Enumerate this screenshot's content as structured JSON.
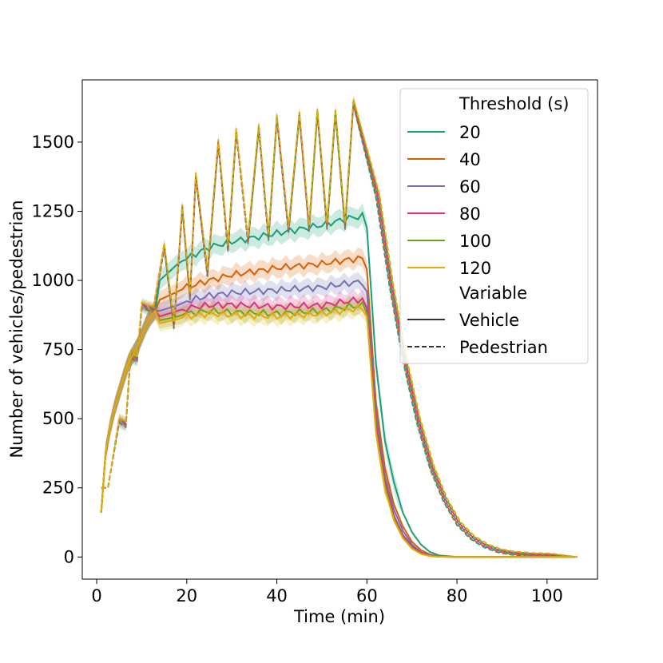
{
  "chart_data": {
    "type": "line",
    "title": "",
    "xlabel": "Time (min)",
    "ylabel": "Number of vehicles/pedestrian",
    "xlim": [
      -3.2,
      111.2
    ],
    "ylim": [
      -80,
      1725
    ],
    "xticks": [
      0,
      20,
      40,
      60,
      80,
      100
    ],
    "yticks": [
      0,
      250,
      500,
      750,
      1000,
      1250,
      1500
    ],
    "grid": false,
    "legend": {
      "placement": "top-right",
      "hue_title": "Threshold (s)",
      "style_title": "Variable",
      "style_entries": [
        {
          "label": "Vehicle",
          "dash": "solid"
        },
        {
          "label": "Pedestrian",
          "dash": "dashed"
        }
      ]
    },
    "series": [
      {
        "name": "20",
        "color": "#1b9e77",
        "vehicle_plateau": [
          [
            14,
            1000
          ],
          [
            18,
            1060
          ],
          [
            20,
            1080
          ],
          [
            25,
            1120
          ],
          [
            30,
            1140
          ],
          [
            40,
            1170
          ],
          [
            50,
            1200
          ],
          [
            56,
            1225
          ],
          [
            59,
            1232
          ]
        ],
        "vehicle_tail": [
          [
            60,
            1190
          ],
          [
            62,
            700
          ],
          [
            64,
            420
          ],
          [
            66,
            270
          ],
          [
            68,
            160
          ],
          [
            70,
            90
          ],
          [
            72,
            45
          ],
          [
            74,
            18
          ],
          [
            76,
            6
          ],
          [
            80,
            0
          ],
          [
            106,
            0
          ]
        ],
        "pedestrian_offset": 0,
        "band": 35
      },
      {
        "name": "40",
        "color": "#d95f02",
        "vehicle_plateau": [
          [
            14,
            930
          ],
          [
            18,
            960
          ],
          [
            20,
            975
          ],
          [
            25,
            1000
          ],
          [
            30,
            1020
          ],
          [
            40,
            1045
          ],
          [
            50,
            1060
          ],
          [
            56,
            1075
          ],
          [
            59,
            1080
          ]
        ],
        "vehicle_tail": [
          [
            60,
            1040
          ],
          [
            62,
            560
          ],
          [
            64,
            320
          ],
          [
            66,
            190
          ],
          [
            68,
            110
          ],
          [
            70,
            55
          ],
          [
            72,
            25
          ],
          [
            74,
            9
          ],
          [
            76,
            3
          ],
          [
            80,
            0
          ],
          [
            106,
            0
          ]
        ],
        "pedestrian_offset": 4,
        "band": 32
      },
      {
        "name": "60",
        "color": "#7570b3",
        "vehicle_plateau": [
          [
            14,
            890
          ],
          [
            18,
            910
          ],
          [
            20,
            925
          ],
          [
            25,
            945
          ],
          [
            30,
            955
          ],
          [
            40,
            965
          ],
          [
            50,
            975
          ],
          [
            56,
            990
          ],
          [
            59,
            995
          ]
        ],
        "vehicle_tail": [
          [
            60,
            960
          ],
          [
            62,
            520
          ],
          [
            64,
            290
          ],
          [
            66,
            170
          ],
          [
            68,
            95
          ],
          [
            70,
            45
          ],
          [
            72,
            18
          ],
          [
            74,
            6
          ],
          [
            76,
            2
          ],
          [
            80,
            0
          ],
          [
            106,
            0
          ]
        ],
        "pedestrian_offset": 8,
        "band": 30
      },
      {
        "name": "80",
        "color": "#e7298a",
        "vehicle_plateau": [
          [
            14,
            870
          ],
          [
            18,
            890
          ],
          [
            20,
            900
          ],
          [
            25,
            910
          ],
          [
            30,
            912
          ],
          [
            40,
            905
          ],
          [
            50,
            910
          ],
          [
            56,
            925
          ],
          [
            59,
            932
          ]
        ],
        "vehicle_tail": [
          [
            60,
            900
          ],
          [
            62,
            480
          ],
          [
            64,
            270
          ],
          [
            66,
            150
          ],
          [
            68,
            80
          ],
          [
            70,
            38
          ],
          [
            72,
            15
          ],
          [
            74,
            5
          ],
          [
            76,
            1
          ],
          [
            80,
            0
          ],
          [
            106,
            0
          ]
        ],
        "pedestrian_offset": 12,
        "band": 30
      },
      {
        "name": "100",
        "color": "#66a61e",
        "vehicle_plateau": [
          [
            14,
            855
          ],
          [
            18,
            870
          ],
          [
            20,
            880
          ],
          [
            25,
            890
          ],
          [
            30,
            885
          ],
          [
            40,
            880
          ],
          [
            50,
            890
          ],
          [
            56,
            905
          ],
          [
            59,
            910
          ]
        ],
        "vehicle_tail": [
          [
            60,
            880
          ],
          [
            62,
            460
          ],
          [
            64,
            255
          ],
          [
            66,
            140
          ],
          [
            68,
            72
          ],
          [
            70,
            33
          ],
          [
            72,
            12
          ],
          [
            74,
            4
          ],
          [
            76,
            1
          ],
          [
            80,
            0
          ],
          [
            106,
            0
          ]
        ],
        "pedestrian_offset": 16,
        "band": 30
      },
      {
        "name": "120",
        "color": "#e6ab02",
        "vehicle_plateau": [
          [
            14,
            845
          ],
          [
            18,
            860
          ],
          [
            20,
            870
          ],
          [
            25,
            880
          ],
          [
            30,
            875
          ],
          [
            40,
            870
          ],
          [
            50,
            880
          ],
          [
            56,
            895
          ],
          [
            59,
            900
          ]
        ],
        "vehicle_tail": [
          [
            60,
            870
          ],
          [
            62,
            450
          ],
          [
            64,
            245
          ],
          [
            66,
            132
          ],
          [
            68,
            68
          ],
          [
            70,
            30
          ],
          [
            72,
            11
          ],
          [
            74,
            3
          ],
          [
            76,
            1
          ],
          [
            80,
            0
          ],
          [
            106,
            0
          ]
        ],
        "pedestrian_offset": 20,
        "band": 30
      }
    ],
    "vehicle_rise": [
      [
        1,
        160
      ],
      [
        2,
        380
      ],
      [
        3,
        470
      ],
      [
        4,
        540
      ],
      [
        5,
        595
      ],
      [
        6,
        650
      ],
      [
        7,
        700
      ],
      [
        8,
        730
      ],
      [
        9,
        760
      ],
      [
        10,
        800
      ],
      [
        11,
        840
      ],
      [
        12,
        870
      ],
      [
        13,
        890
      ]
    ],
    "pedestrian_sawtooth": {
      "start": [
        [
          1,
          250
        ],
        [
          2.5,
          250
        ]
      ],
      "cycles": [
        [
          5,
          485
        ],
        [
          7.5,
          720
        ],
        [
          10,
          900
        ],
        [
          15,
          1115
        ],
        [
          19,
          1255
        ],
        [
          22,
          1370
        ],
        [
          27,
          1490
        ],
        [
          31,
          1530
        ],
        [
          36,
          1545
        ],
        [
          40,
          1580
        ],
        [
          45,
          1590
        ],
        [
          49,
          1600
        ],
        [
          53,
          1600
        ],
        [
          57,
          1635
        ]
      ],
      "drop_fraction": 0.74,
      "decay": [
        [
          59,
          1635
        ],
        [
          62,
          1300
        ],
        [
          65,
          980
        ],
        [
          68,
          710
        ],
        [
          71,
          490
        ],
        [
          74,
          320
        ],
        [
          77,
          200
        ],
        [
          80,
          115
        ],
        [
          83,
          65
        ],
        [
          86,
          35
        ],
        [
          89,
          17
        ],
        [
          92,
          8
        ],
        [
          96,
          3
        ],
        [
          100,
          1
        ],
        [
          106,
          0
        ]
      ]
    }
  }
}
